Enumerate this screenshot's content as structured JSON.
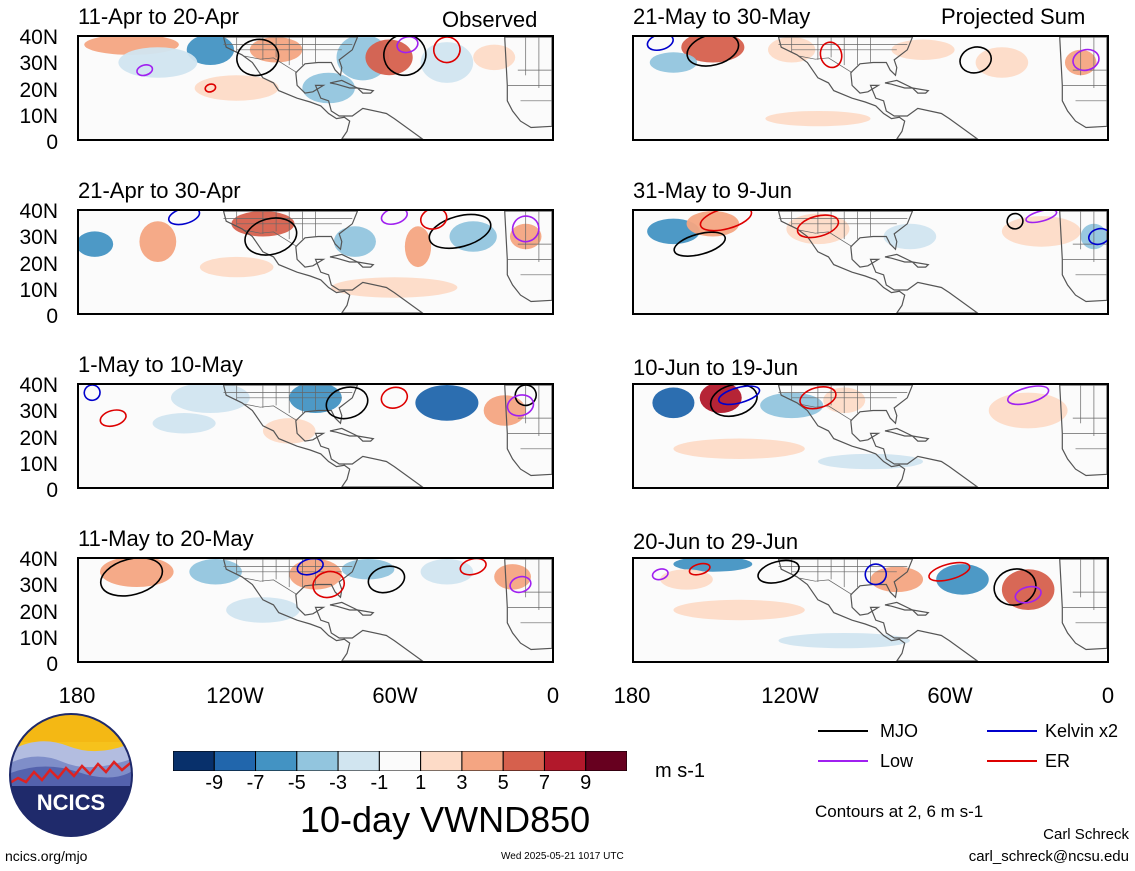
{
  "panels": [
    {
      "id": "p1",
      "title": "11-Apr to 20-Apr",
      "corner": "Observed"
    },
    {
      "id": "p2",
      "title": "21-Apr to 30-Apr",
      "corner": ""
    },
    {
      "id": "p3",
      "title": "1-May to 10-May",
      "corner": ""
    },
    {
      "id": "p4",
      "title": "11-May to 20-May",
      "corner": ""
    },
    {
      "id": "p5",
      "title": "21-May to 30-May",
      "corner": "Projected Sum"
    },
    {
      "id": "p6",
      "title": "31-May to 9-Jun",
      "corner": ""
    },
    {
      "id": "p7",
      "title": "10-Jun to 19-Jun",
      "corner": ""
    },
    {
      "id": "p8",
      "title": "20-Jun to 29-Jun",
      "corner": ""
    }
  ],
  "lat_labels": [
    "40N",
    "30N",
    "20N",
    "10N",
    "0"
  ],
  "lon_labels": [
    "180",
    "120W",
    "60W",
    "0"
  ],
  "colorbar": {
    "ticks": [
      "-9",
      "-7",
      "-5",
      "-3",
      "-1",
      "1",
      "3",
      "5",
      "7",
      "9"
    ],
    "colors": [
      "#08306b",
      "#2166ac",
      "#4393c3",
      "#92c5de",
      "#d1e5f0",
      "#fbfbfb",
      "#fddbc7",
      "#f4a582",
      "#d6604d",
      "#b2182b",
      "#67001f"
    ],
    "units": "m s-1"
  },
  "title": "10-day VWND850",
  "legend": [
    {
      "label": "MJO",
      "color": "#000000"
    },
    {
      "label": "Kelvin x2",
      "color": "#0000cc"
    },
    {
      "label": "Low",
      "color": "#a020f0"
    },
    {
      "label": "ER",
      "color": "#dd0000"
    }
  ],
  "contours_note": "Contours at 2, 6 m s-1",
  "author": "Carl Schreck",
  "email": "carl_schreck@ncsu.edu",
  "url": "ncics.org/mjo",
  "timestamp": "Wed 2025-05-21 1017 UTC",
  "logo_text": "NCICS"
}
